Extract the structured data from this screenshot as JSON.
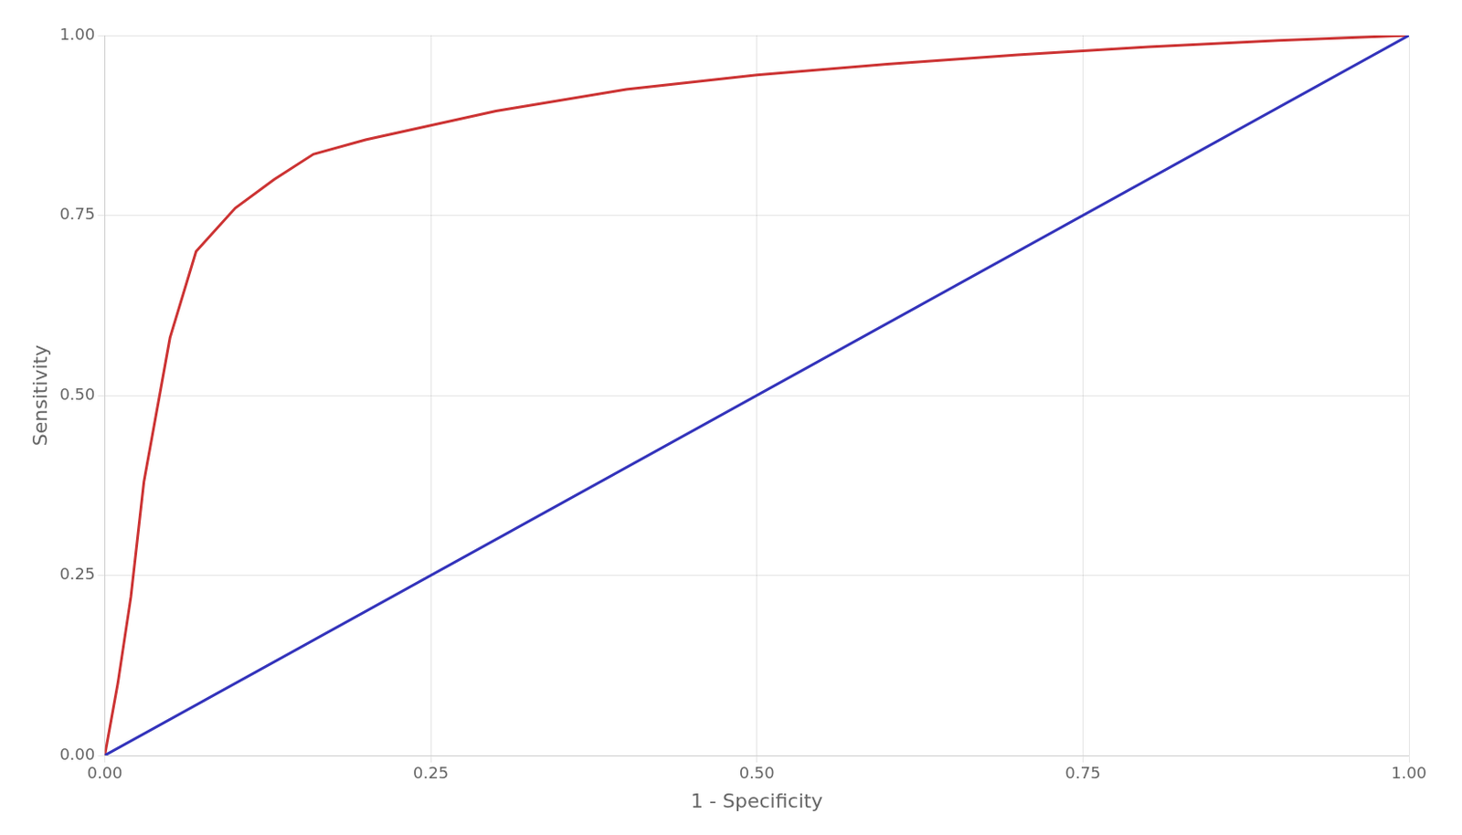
{
  "chart_data": {
    "type": "line",
    "xlabel": "1 - Specificity",
    "ylabel": "Sensitivity",
    "series": [
      {
        "color": "#3333bb",
        "x": [
          0.0,
          1.0
        ],
        "values": [
          0.0,
          1.0
        ]
      },
      {
        "color": "#cc3333",
        "x": [
          0.0,
          0.01,
          0.02,
          0.03,
          0.05,
          0.07,
          0.1,
          0.13,
          0.16,
          0.2,
          0.25,
          0.3,
          0.4,
          0.5,
          0.6,
          0.7,
          0.8,
          0.9,
          1.0
        ],
        "values": [
          0.0,
          0.1,
          0.22,
          0.38,
          0.58,
          0.7,
          0.76,
          0.8,
          0.835,
          0.855,
          0.875,
          0.895,
          0.925,
          0.945,
          0.96,
          0.973,
          0.984,
          0.993,
          1.0
        ]
      }
    ],
    "xlim": [
      0.0,
      1.0
    ],
    "ylim": [
      0.0,
      1.0
    ],
    "xticks": [
      {
        "value": 0.0,
        "label": "0.00"
      },
      {
        "value": 0.25,
        "label": "0.25"
      },
      {
        "value": 0.5,
        "label": "0.50"
      },
      {
        "value": 0.75,
        "label": "0.75"
      },
      {
        "value": 1.0,
        "label": "1.00"
      }
    ],
    "yticks": [
      {
        "value": 0.0,
        "label": "0.00"
      },
      {
        "value": 0.25,
        "label": "0.25"
      },
      {
        "value": 0.5,
        "label": "0.50"
      },
      {
        "value": 0.75,
        "label": "0.75"
      },
      {
        "value": 1.0,
        "label": "1.00"
      }
    ],
    "grid": true
  }
}
